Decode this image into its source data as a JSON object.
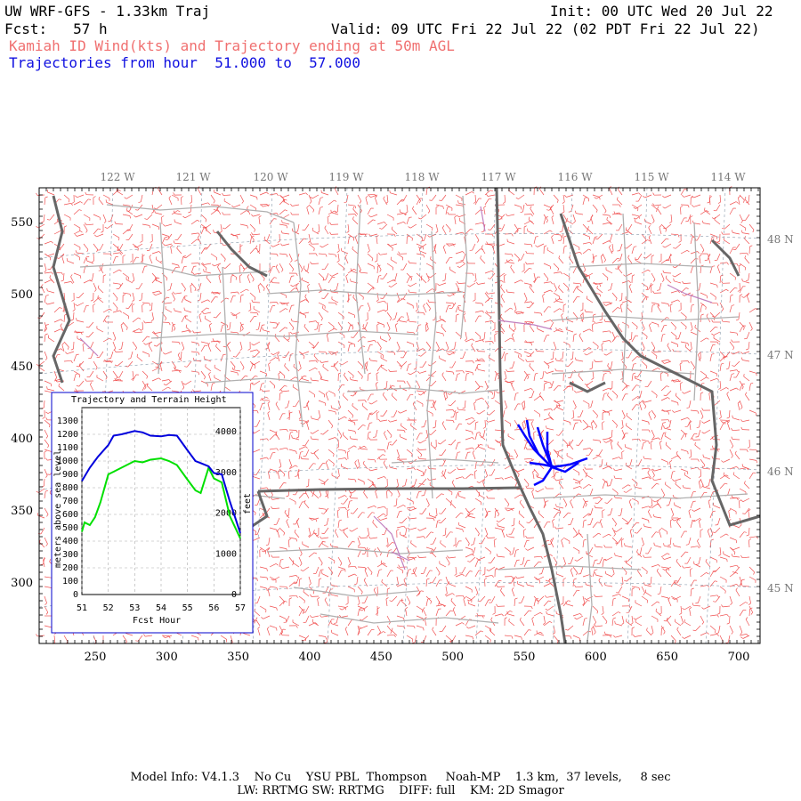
{
  "header": {
    "model": "UW WRF-GFS - 1.33km Traj",
    "init": "Init: 00 UTC Wed 20 Jul 22",
    "fcst": "Fcst:   57 h",
    "valid": "Valid: 09 UTC Fri 22 Jul 22 (02 PDT Fri 22 Jul 22)",
    "subtitle": "Kamiah ID Wind(kts) and Trajectory ending at 50m AGL",
    "trajectories": "Trajectories from hour  51.000 to  57.000"
  },
  "map": {
    "longitude_labels": [
      "122 W",
      "121 W",
      "120 W",
      "119 W",
      "118 W",
      "117 W",
      "116 W",
      "115 W",
      "114 W"
    ],
    "latitude_labels": [
      "48 N",
      "47 N",
      "46 N",
      "45 N"
    ],
    "x_ticks": [
      "250",
      "300",
      "350",
      "400",
      "450",
      "500",
      "550",
      "600",
      "650",
      "700"
    ],
    "y_ticks": [
      "550",
      "500",
      "450",
      "400",
      "350",
      "300"
    ],
    "wind_barb_color": "#f05050",
    "trajectory_color": "#0000ff",
    "border_color": "#666666",
    "county_color": "#b0b0b0",
    "water_color": "#c080c0"
  },
  "inset": {
    "title": "Trajectory and Terrain Height",
    "ylabel_left": "meters above sea level",
    "ylabel_right": "feet",
    "xlabel": "Fcst Hour",
    "left_ticks": [
      "0",
      "100",
      "200",
      "300",
      "400",
      "500",
      "600",
      "700",
      "800",
      "900",
      "1000",
      "1100",
      "1200",
      "1300"
    ],
    "right_ticks": [
      "0",
      "1000",
      "2000",
      "3000",
      "4000"
    ],
    "x_ticks": [
      "51",
      "52",
      "53",
      "54",
      "55",
      "56",
      "57"
    ],
    "trajectory_color": "#0000dd",
    "terrain_color": "#00e000"
  },
  "chart_data": {
    "type": "line",
    "title": "Trajectory and Terrain Height",
    "xlabel": "Fcst Hour",
    "ylabel": "meters above sea level",
    "xlim": [
      51,
      57
    ],
    "ylim": [
      0,
      1400
    ],
    "series": [
      {
        "name": "trajectory",
        "x": [
          51,
          51.3,
          51.6,
          52,
          52.2,
          52.5,
          53,
          53.3,
          53.6,
          54,
          54.3,
          54.6,
          55,
          55.3,
          55.5,
          55.8,
          56,
          56.3,
          56.6,
          57
        ],
        "y": [
          850,
          950,
          1030,
          1120,
          1190,
          1200,
          1225,
          1215,
          1190,
          1185,
          1195,
          1190,
          1080,
          1000,
          985,
          960,
          910,
          900,
          700,
          460
        ]
      },
      {
        "name": "terrain",
        "x": [
          51,
          51.1,
          51.3,
          51.5,
          51.7,
          52,
          52.3,
          52.6,
          53,
          53.3,
          53.6,
          54,
          54.3,
          54.6,
          55,
          55.3,
          55.5,
          55.8,
          56,
          56.3,
          56.6,
          57
        ],
        "y": [
          470,
          540,
          520,
          580,
          690,
          900,
          930,
          960,
          1000,
          990,
          1010,
          1020,
          1000,
          970,
          860,
          780,
          760,
          950,
          870,
          840,
          590,
          420
        ]
      }
    ]
  },
  "footer": {
    "line1": "Model Info: V4.1.3    No Cu    YSU PBL  Thompson     Noah-MP    1.3 km,  37 levels,     8 sec",
    "line2": "LW: RRTMG SW: RRTMG    DIFF: full    KM: 2D Smagor"
  }
}
